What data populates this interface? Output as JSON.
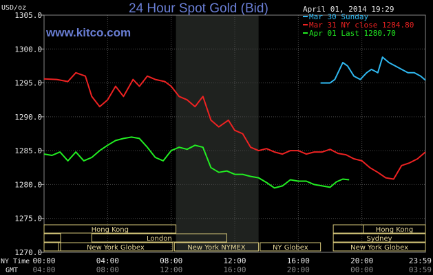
{
  "header": {
    "title": "24 Hour Spot Gold (Bid)",
    "unit": "USD/oz",
    "timestamp": "April 01, 2014 19:29",
    "site": "www.kitco.com"
  },
  "colors": {
    "background": "#000000",
    "shade": "#1f221f",
    "grid": "#4a4a4a",
    "sun": "#2fb8f0",
    "close": "#ee2222",
    "last": "#22ee22",
    "session_border": "#d6c77a"
  },
  "legend": [
    {
      "label": "Mar 30 Sunday",
      "color": "#2fb8f0"
    },
    {
      "label": "Mar 31 NY close 1284.80",
      "color": "#ee2222"
    },
    {
      "label": "Apr 01 Last 1280.70",
      "color": "#22ee22"
    }
  ],
  "axis_labels": {
    "ny_time": "NY Time",
    "gmt": "GMT"
  },
  "sessions": [
    {
      "label": "Hong Kong",
      "start": 0,
      "end": 8.3,
      "row": 1
    },
    {
      "label": "London",
      "start": 3,
      "end": 11.5,
      "row": 2
    },
    {
      "label": "New York Globex",
      "start": 0.9,
      "end": 8.1,
      "row": 3
    },
    {
      "label": "New York NYMEX",
      "start": 8.2,
      "end": 13.5,
      "row": 3
    },
    {
      "label": "NY Globex",
      "start": 13.6,
      "end": 17.4,
      "row": 3
    },
    {
      "label": "Hong Kong",
      "start": 20.1,
      "end": 24,
      "row": 1
    },
    {
      "label": "Sydney",
      "start": 18.2,
      "end": 24,
      "row": 2
    },
    {
      "label": "New York Globex",
      "start": 18.2,
      "end": 24,
      "row": 3
    }
  ],
  "chart_data": {
    "type": "line",
    "title": "24 Hour Spot Gold (Bid)",
    "ylabel": "USD/oz",
    "ylim": [
      1270,
      1305
    ],
    "yticks": [
      "1305.0",
      "1300.0",
      "1295.0",
      "1290.0",
      "1285.0",
      "1280.0",
      "1275.0",
      "1270.0"
    ],
    "xlim": [
      0,
      24
    ],
    "xticks_ny": [
      "00:00",
      "04:00",
      "08:00",
      "12:00",
      "16:00",
      "20:00",
      "23:59"
    ],
    "xticks_gmt": [
      "04:00",
      "08:00",
      "12:00",
      "16:00",
      "20:00",
      "00:00",
      "03:59"
    ],
    "shaded_hours": [
      8.3,
      13.5
    ],
    "series": [
      {
        "name": "Mar 30 Sunday",
        "color": "#2fb8f0",
        "x": [
          17.4,
          18.0,
          18.3,
          18.8,
          19.1,
          19.5,
          19.9,
          20.3,
          20.6,
          21.0,
          21.3,
          21.7,
          22.1,
          22.5,
          22.9,
          23.3,
          23.7,
          24.0
        ],
        "y": [
          1295.0,
          1295.0,
          1295.5,
          1298.0,
          1297.5,
          1296.0,
          1295.5,
          1296.5,
          1297.0,
          1296.5,
          1298.8,
          1298.0,
          1297.5,
          1297.0,
          1296.5,
          1296.5,
          1296.0,
          1295.4
        ]
      },
      {
        "name": "Mar 31 NY close 1284.80",
        "color": "#ee2222",
        "x": [
          0,
          0.8,
          1.5,
          2.0,
          2.6,
          3.0,
          3.5,
          4.0,
          4.5,
          5.0,
          5.6,
          6.0,
          6.5,
          7.0,
          7.6,
          8.0,
          8.5,
          9.0,
          9.5,
          10.0,
          10.5,
          11.0,
          11.6,
          12.0,
          12.5,
          13.0,
          13.5,
          14.0,
          14.5,
          15.0,
          15.5,
          16.0,
          16.5,
          17.0,
          17.5,
          18.0,
          18.5,
          19.0,
          19.5,
          20.0,
          20.5,
          21.0,
          21.5,
          22.0,
          22.5,
          23.0,
          23.5,
          24.0
        ],
        "y": [
          1295.6,
          1295.5,
          1295.2,
          1296.5,
          1296.0,
          1293.0,
          1291.5,
          1292.5,
          1294.5,
          1293.0,
          1295.5,
          1294.5,
          1296.0,
          1295.5,
          1295.2,
          1294.5,
          1293.0,
          1292.5,
          1291.5,
          1293.0,
          1289.5,
          1288.5,
          1289.5,
          1288.0,
          1287.5,
          1285.5,
          1285.0,
          1285.3,
          1284.8,
          1284.5,
          1285.0,
          1285.0,
          1284.5,
          1284.8,
          1284.8,
          1285.2,
          1284.6,
          1284.4,
          1283.8,
          1283.5,
          1282.5,
          1281.8,
          1281.0,
          1280.8,
          1282.8,
          1283.2,
          1283.8,
          1284.8
        ]
      },
      {
        "name": "Apr 01 Last 1280.70",
        "color": "#22ee22",
        "x": [
          0,
          0.5,
          1.0,
          1.5,
          2.0,
          2.5,
          3.0,
          3.5,
          4.0,
          4.5,
          5.0,
          5.5,
          6.0,
          6.5,
          7.0,
          7.5,
          8.0,
          8.5,
          9.0,
          9.5,
          10.0,
          10.5,
          11.0,
          11.5,
          12.0,
          12.5,
          13.0,
          13.5,
          14.0,
          14.5,
          15.0,
          15.5,
          16.0,
          16.5,
          17.0,
          17.5,
          18.0,
          18.4,
          18.8,
          19.2
        ],
        "y": [
          1284.5,
          1284.3,
          1284.8,
          1283.5,
          1284.8,
          1283.5,
          1284.0,
          1285.0,
          1285.8,
          1286.5,
          1286.8,
          1287.0,
          1286.8,
          1285.5,
          1284.0,
          1283.5,
          1285.0,
          1285.5,
          1285.2,
          1285.8,
          1285.5,
          1282.5,
          1281.8,
          1282.0,
          1281.5,
          1281.5,
          1281.2,
          1281.0,
          1280.3,
          1279.5,
          1279.8,
          1280.7,
          1280.5,
          1280.5,
          1280.0,
          1279.8,
          1279.6,
          1280.4,
          1280.8,
          1280.7
        ]
      }
    ]
  }
}
